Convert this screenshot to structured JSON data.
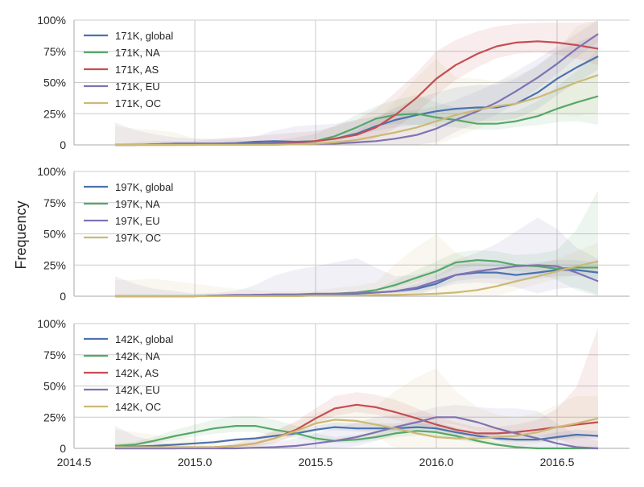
{
  "ylabel": "Frequency",
  "colors": {
    "global": "#4c72b0",
    "NA": "#55a868",
    "AS": "#c44e52",
    "EU": "#8172b2",
    "OC": "#ccb974",
    "grid": "#cbcbcb",
    "axis": "#aaaaaa"
  },
  "chart_data": [
    {
      "type": "line",
      "x": [
        2014.67,
        2014.75,
        2014.83,
        2014.92,
        2015.0,
        2015.08,
        2015.17,
        2015.25,
        2015.33,
        2015.42,
        2015.5,
        2015.58,
        2015.67,
        2015.75,
        2015.83,
        2015.92,
        2016.0,
        2016.08,
        2016.17,
        2016.25,
        2016.33,
        2016.42,
        2016.5,
        2016.58,
        2016.67
      ],
      "xlim": [
        2014.5,
        2016.8
      ],
      "xticks": [
        "2014.5",
        "2015.0",
        "2015.5",
        "2016.0",
        "2016.5"
      ],
      "ylim": [
        0,
        1
      ],
      "yticks": [
        "0",
        "25%",
        "50%",
        "75%",
        "100%"
      ],
      "legend": "top-left",
      "grid": true,
      "series": [
        {
          "name": "171K, global",
          "key": "global",
          "values": [
            0.0,
            0.0,
            0.005,
            0.01,
            0.01,
            0.01,
            0.015,
            0.025,
            0.03,
            0.025,
            0.03,
            0.05,
            0.09,
            0.15,
            0.2,
            0.24,
            0.27,
            0.29,
            0.3,
            0.3,
            0.33,
            0.42,
            0.53,
            0.62,
            0.71
          ],
          "band": [
            0.0,
            0.0,
            0.0,
            0.0,
            0.0,
            0.0,
            0.0,
            0.0,
            0.0,
            0.0,
            0.0,
            0.0,
            0.03,
            0.06,
            0.1,
            0.13,
            0.15,
            0.17,
            0.18,
            0.18,
            0.2,
            0.22,
            0.22,
            0.2,
            0.18
          ]
        },
        {
          "name": "171K, NA",
          "key": "NA",
          "values": [
            0.0,
            0.0,
            0.0,
            0.0,
            0.005,
            0.005,
            0.01,
            0.01,
            0.015,
            0.02,
            0.03,
            0.07,
            0.14,
            0.21,
            0.24,
            0.25,
            0.22,
            0.2,
            0.17,
            0.17,
            0.19,
            0.23,
            0.29,
            0.34,
            0.39
          ],
          "band": [
            0.0,
            0.0,
            0.0,
            0.0,
            0.0,
            0.0,
            0.0,
            0.0,
            0.02,
            0.04,
            0.06,
            0.08,
            0.1,
            0.1,
            0.12,
            0.15,
            0.12,
            0.1,
            0.08,
            0.08,
            0.08,
            0.12,
            0.18,
            0.25,
            0.38
          ]
        },
        {
          "name": "171K, AS",
          "key": "AS",
          "values": [
            0.0,
            0.0,
            0.0,
            0.0,
            0.0,
            0.005,
            0.005,
            0.01,
            0.015,
            0.02,
            0.03,
            0.05,
            0.08,
            0.14,
            0.24,
            0.38,
            0.53,
            0.64,
            0.73,
            0.79,
            0.82,
            0.83,
            0.82,
            0.8,
            0.77
          ],
          "band": [
            0.0,
            0.02,
            0.03,
            0.03,
            0.03,
            0.04,
            0.05,
            0.06,
            0.07,
            0.08,
            0.08,
            0.1,
            0.12,
            0.15,
            0.18,
            0.2,
            0.22,
            0.2,
            0.18,
            0.16,
            0.15,
            0.15,
            0.16,
            0.18,
            0.22
          ]
        },
        {
          "name": "171K, EU",
          "key": "EU",
          "values": [
            0.0,
            0.0,
            0.005,
            0.01,
            0.01,
            0.01,
            0.01,
            0.01,
            0.015,
            0.01,
            0.01,
            0.01,
            0.02,
            0.03,
            0.05,
            0.08,
            0.13,
            0.2,
            0.27,
            0.34,
            0.43,
            0.54,
            0.65,
            0.77,
            0.89
          ],
          "band": [
            0.18,
            0.12,
            0.08,
            0.05,
            0.04,
            0.04,
            0.05,
            0.06,
            0.1,
            0.14,
            0.15,
            0.16,
            0.18,
            0.2,
            0.22,
            0.2,
            0.18,
            0.16,
            0.16,
            0.16,
            0.16,
            0.15,
            0.14,
            0.12,
            0.11
          ]
        },
        {
          "name": "171K, OC",
          "key": "OC",
          "values": [
            0.0,
            0.0,
            0.0,
            0.0,
            0.0,
            0.0,
            0.0,
            0.0,
            0.0,
            0.005,
            0.01,
            0.02,
            0.04,
            0.07,
            0.1,
            0.14,
            0.19,
            0.24,
            0.28,
            0.31,
            0.33,
            0.38,
            0.44,
            0.5,
            0.56
          ],
          "band": [
            0.15,
            0.13,
            0.12,
            0.1,
            0.05,
            0.04,
            0.04,
            0.03,
            0.03,
            0.03,
            0.03,
            0.04,
            0.06,
            0.12,
            0.25,
            0.4,
            0.5,
            0.3,
            0.25,
            0.2,
            0.22,
            0.25,
            0.32,
            0.45,
            0.5
          ]
        }
      ]
    },
    {
      "type": "line",
      "x": [
        2014.67,
        2014.75,
        2014.83,
        2014.92,
        2015.0,
        2015.08,
        2015.17,
        2015.25,
        2015.33,
        2015.42,
        2015.5,
        2015.58,
        2015.67,
        2015.75,
        2015.83,
        2015.92,
        2016.0,
        2016.08,
        2016.17,
        2016.25,
        2016.33,
        2016.42,
        2016.5,
        2016.58,
        2016.67
      ],
      "xlim": [
        2014.5,
        2016.8
      ],
      "xticks": [
        "2014.5",
        "2015.0",
        "2015.5",
        "2016.0",
        "2016.5"
      ],
      "ylim": [
        0,
        1
      ],
      "yticks": [
        "0",
        "25%",
        "50%",
        "75%",
        "100%"
      ],
      "legend": "top-left",
      "grid": true,
      "series": [
        {
          "name": "197K, global",
          "key": "global",
          "values": [
            0.0,
            0.0,
            0.0,
            0.0,
            0.0,
            0.005,
            0.005,
            0.01,
            0.01,
            0.01,
            0.015,
            0.015,
            0.02,
            0.03,
            0.04,
            0.06,
            0.1,
            0.17,
            0.19,
            0.19,
            0.17,
            0.19,
            0.21,
            0.21,
            0.19
          ],
          "band": [
            0.0,
            0.0,
            0.0,
            0.0,
            0.0,
            0.0,
            0.0,
            0.0,
            0.0,
            0.0,
            0.0,
            0.0,
            0.0,
            0.0,
            0.02,
            0.04,
            0.06,
            0.08,
            0.08,
            0.08,
            0.08,
            0.08,
            0.08,
            0.08,
            0.08
          ]
        },
        {
          "name": "197K, NA",
          "key": "NA",
          "values": [
            0.0,
            0.0,
            0.0,
            0.0,
            0.0,
            0.005,
            0.005,
            0.01,
            0.01,
            0.01,
            0.015,
            0.02,
            0.03,
            0.05,
            0.09,
            0.15,
            0.2,
            0.27,
            0.29,
            0.28,
            0.25,
            0.24,
            0.22,
            0.23,
            0.23
          ],
          "band": [
            0.0,
            0.0,
            0.0,
            0.0,
            0.0,
            0.0,
            0.0,
            0.0,
            0.0,
            0.0,
            0.0,
            0.0,
            0.0,
            0.0,
            0.04,
            0.06,
            0.08,
            0.08,
            0.08,
            0.08,
            0.08,
            0.1,
            0.15,
            0.3,
            0.62
          ]
        },
        {
          "name": "197K, EU",
          "key": "EU",
          "values": [
            0.0,
            0.0,
            0.0,
            0.0,
            0.0,
            0.005,
            0.01,
            0.01,
            0.015,
            0.015,
            0.02,
            0.02,
            0.025,
            0.03,
            0.04,
            0.07,
            0.12,
            0.17,
            0.2,
            0.22,
            0.24,
            0.25,
            0.24,
            0.19,
            0.12
          ],
          "band": [
            0.16,
            0.1,
            0.06,
            0.04,
            0.02,
            0.02,
            0.03,
            0.08,
            0.15,
            0.2,
            0.22,
            0.25,
            0.28,
            0.2,
            0.12,
            0.1,
            0.1,
            0.12,
            0.15,
            0.2,
            0.28,
            0.38,
            0.3,
            0.2,
            0.18
          ]
        },
        {
          "name": "197K, OC",
          "key": "OC",
          "values": [
            0.0,
            0.0,
            0.0,
            0.0,
            0.0,
            0.0,
            0.0,
            0.0,
            0.0,
            0.0,
            0.005,
            0.005,
            0.005,
            0.01,
            0.01,
            0.015,
            0.02,
            0.03,
            0.05,
            0.08,
            0.12,
            0.16,
            0.2,
            0.24,
            0.28
          ],
          "band": [
            0.13,
            0.13,
            0.14,
            0.12,
            0.1,
            0.08,
            0.06,
            0.05,
            0.04,
            0.04,
            0.04,
            0.06,
            0.08,
            0.1,
            0.25,
            0.38,
            0.48,
            0.32,
            0.22,
            0.16,
            0.12,
            0.1,
            0.1,
            0.12,
            0.15
          ]
        }
      ]
    },
    {
      "type": "line",
      "x": [
        2014.67,
        2014.75,
        2014.83,
        2014.92,
        2015.0,
        2015.08,
        2015.17,
        2015.25,
        2015.33,
        2015.42,
        2015.5,
        2015.58,
        2015.67,
        2015.75,
        2015.83,
        2015.92,
        2016.0,
        2016.08,
        2016.17,
        2016.25,
        2016.33,
        2016.42,
        2016.5,
        2016.58,
        2016.67
      ],
      "xlim": [
        2014.5,
        2016.8
      ],
      "xticks": [
        "2014.5",
        "2015.0",
        "2015.5",
        "2016.0",
        "2016.5"
      ],
      "ylim": [
        0,
        1
      ],
      "yticks": [
        "0",
        "25%",
        "50%",
        "75%",
        "100%"
      ],
      "legend": "top-left",
      "grid": true,
      "series": [
        {
          "name": "142K, global",
          "key": "global",
          "values": [
            0.01,
            0.015,
            0.02,
            0.03,
            0.04,
            0.05,
            0.07,
            0.08,
            0.1,
            0.12,
            0.15,
            0.17,
            0.16,
            0.16,
            0.16,
            0.17,
            0.16,
            0.13,
            0.1,
            0.08,
            0.07,
            0.07,
            0.09,
            0.11,
            0.1
          ],
          "band": [
            0.0,
            0.0,
            0.0,
            0.0,
            0.0,
            0.0,
            0.0,
            0.0,
            0.0,
            0.0,
            0.03,
            0.04,
            0.04,
            0.04,
            0.04,
            0.05,
            0.05,
            0.04,
            0.03,
            0.03,
            0.03,
            0.03,
            0.04,
            0.04,
            0.04
          ]
        },
        {
          "name": "142K, NA",
          "key": "NA",
          "values": [
            0.02,
            0.03,
            0.06,
            0.1,
            0.13,
            0.16,
            0.18,
            0.18,
            0.15,
            0.12,
            0.08,
            0.06,
            0.07,
            0.09,
            0.12,
            0.14,
            0.13,
            0.1,
            0.06,
            0.03,
            0.01,
            0.0,
            0.0,
            0.0,
            0.0
          ],
          "band": [
            0.02,
            0.02,
            0.03,
            0.05,
            0.06,
            0.07,
            0.08,
            0.08,
            0.08,
            0.06,
            0.04,
            0.03,
            0.04,
            0.04,
            0.05,
            0.06,
            0.06,
            0.05,
            0.03,
            0.02,
            0.0,
            0.0,
            0.0,
            0.0,
            0.0
          ]
        },
        {
          "name": "142K, AS",
          "key": "AS",
          "values": [
            0.0,
            0.0,
            0.0,
            0.0,
            0.005,
            0.01,
            0.02,
            0.04,
            0.08,
            0.15,
            0.24,
            0.32,
            0.35,
            0.33,
            0.29,
            0.24,
            0.19,
            0.15,
            0.12,
            0.12,
            0.13,
            0.15,
            0.17,
            0.19,
            0.21
          ],
          "band": [
            0.0,
            0.0,
            0.0,
            0.0,
            0.0,
            0.0,
            0.02,
            0.04,
            0.06,
            0.07,
            0.08,
            0.1,
            0.1,
            0.1,
            0.1,
            0.08,
            0.07,
            0.06,
            0.05,
            0.05,
            0.06,
            0.08,
            0.15,
            0.3,
            0.76
          ]
        },
        {
          "name": "142K, EU",
          "key": "EU",
          "values": [
            0.0,
            0.0,
            0.0,
            0.0,
            0.0,
            0.0,
            0.0,
            0.005,
            0.01,
            0.02,
            0.04,
            0.06,
            0.09,
            0.13,
            0.17,
            0.21,
            0.25,
            0.25,
            0.21,
            0.16,
            0.12,
            0.08,
            0.04,
            0.01,
            0.0
          ],
          "band": [
            0.18,
            0.1,
            0.06,
            0.03,
            0.02,
            0.02,
            0.02,
            0.03,
            0.04,
            0.06,
            0.08,
            0.1,
            0.12,
            0.12,
            0.1,
            0.08,
            0.08,
            0.1,
            0.12,
            0.16,
            0.2,
            0.22,
            0.16,
            0.1,
            0.06
          ]
        },
        {
          "name": "142K, OC",
          "key": "OC",
          "values": [
            0.01,
            0.01,
            0.01,
            0.01,
            0.01,
            0.01,
            0.02,
            0.04,
            0.08,
            0.14,
            0.2,
            0.23,
            0.22,
            0.19,
            0.16,
            0.12,
            0.09,
            0.08,
            0.08,
            0.09,
            0.1,
            0.13,
            0.17,
            0.2,
            0.24
          ],
          "band": [
            0.14,
            0.12,
            0.1,
            0.08,
            0.06,
            0.06,
            0.06,
            0.06,
            0.06,
            0.07,
            0.08,
            0.1,
            0.12,
            0.15,
            0.3,
            0.45,
            0.55,
            0.38,
            0.25,
            0.18,
            0.15,
            0.15,
            0.18,
            0.22,
            0.18
          ]
        }
      ]
    }
  ]
}
